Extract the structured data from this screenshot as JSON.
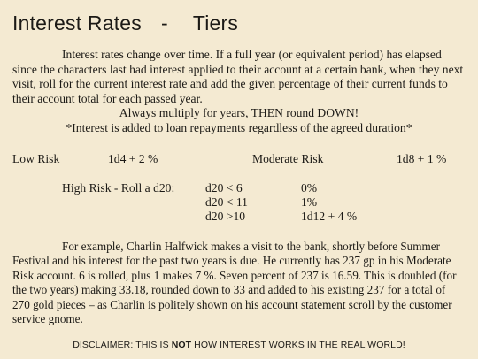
{
  "title": {
    "left": "Interest Rates",
    "sep": "-",
    "right": "Tiers"
  },
  "intro": {
    "paragraph": "Interest rates change over time. If a full year (or equivalent period) has elapsed since the characters last had interest applied to their account at a certain bank, when they next visit, roll for the current interest rate and add the given percentage of their current funds to their account total for each passed year.",
    "rule1": "Always multiply for years, THEN round DOWN!",
    "rule2": "*Interest is added to loan repayments regardless of the agreed duration*"
  },
  "tiers": {
    "low": {
      "label": "Low Risk",
      "value": "1d4 + 2 %"
    },
    "moderate": {
      "label": "Moderate Risk",
      "value": "1d8 + 1 %"
    },
    "high": {
      "label": "High Risk - Roll a d20:",
      "rows": [
        {
          "roll": "d20 < 6",
          "result": "0%"
        },
        {
          "roll": "d20 < 11",
          "result": "1%"
        },
        {
          "roll": "d20 >10",
          "result": "1d12 + 4 %"
        }
      ]
    }
  },
  "example": "For example, Charlin Halfwick makes a visit to the bank, shortly before Summer Festival and his interest for the past two years is due. He currently has  237 gp in his Moderate Risk account. 6 is rolled, plus 1 makes 7 %. Seven percent of 237 is 16.59. This is doubled (for the two years) making 33.18, rounded down to 33 and added to his existing 237 for a total of 270 gold pieces – as Charlin is politely shown on his account statement scroll by the customer service gnome.",
  "disclaimer": {
    "before": "DISCLAIMER: THIS IS ",
    "emphasis": "NOT",
    "after": " HOW INTEREST WORKS IN THE REAL WORLD!"
  }
}
